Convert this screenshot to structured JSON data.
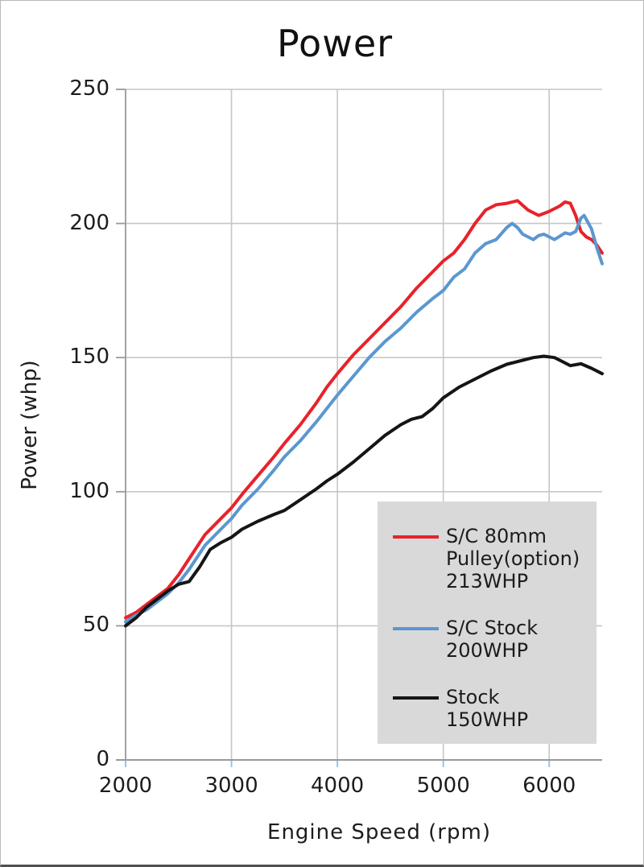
{
  "chart_data": {
    "type": "line",
    "title": "Power",
    "xlabel": "Engine Speed (rpm)",
    "ylabel": "Power (whp)",
    "xlim": [
      2000,
      6500
    ],
    "ylim": [
      0,
      250
    ],
    "x_ticks": [
      2000,
      3000,
      4000,
      5000,
      6000
    ],
    "y_ticks": [
      0,
      50,
      100,
      150,
      200,
      250
    ],
    "grid": true,
    "legend_position": "lower right",
    "colors": {
      "gridline": "#c6c6c6",
      "axis": "#999999",
      "x_tick_mark": "#9dc3e6",
      "legend_background": "#d9d9d9",
      "text": "#1c1c1c"
    },
    "series": [
      {
        "name": "S/C 80mm Pulley(option) 213WHP",
        "legend_text": "S/C 80mm\nPulley(option)\n213WHP",
        "color": "#e8222a",
        "peak_whp": 213,
        "points": [
          [
            2000,
            53
          ],
          [
            2100,
            55
          ],
          [
            2200,
            58
          ],
          [
            2300,
            61
          ],
          [
            2400,
            64
          ],
          [
            2500,
            69
          ],
          [
            2600,
            75
          ],
          [
            2750,
            84
          ],
          [
            2850,
            88
          ],
          [
            3000,
            94
          ],
          [
            3100,
            99
          ],
          [
            3250,
            106
          ],
          [
            3400,
            113
          ],
          [
            3500,
            118
          ],
          [
            3650,
            125
          ],
          [
            3800,
            133
          ],
          [
            3900,
            139
          ],
          [
            4000,
            144
          ],
          [
            4150,
            151
          ],
          [
            4300,
            157
          ],
          [
            4450,
            163
          ],
          [
            4600,
            169
          ],
          [
            4750,
            176
          ],
          [
            4900,
            182
          ],
          [
            5000,
            186
          ],
          [
            5100,
            189
          ],
          [
            5200,
            194
          ],
          [
            5300,
            200
          ],
          [
            5400,
            205
          ],
          [
            5500,
            207
          ],
          [
            5600,
            207.5
          ],
          [
            5700,
            208.5
          ],
          [
            5800,
            205
          ],
          [
            5900,
            203
          ],
          [
            6000,
            204.5
          ],
          [
            6100,
            206.5
          ],
          [
            6150,
            208
          ],
          [
            6200,
            207.5
          ],
          [
            6250,
            203
          ],
          [
            6300,
            197
          ],
          [
            6350,
            195
          ],
          [
            6400,
            194
          ],
          [
            6450,
            192
          ],
          [
            6500,
            189
          ]
        ]
      },
      {
        "name": "S/C Stock 200WHP",
        "legend_text": "S/C Stock\n200WHP",
        "color": "#5b97d0",
        "peak_whp": 200,
        "points": [
          [
            2000,
            51.5
          ],
          [
            2100,
            54
          ],
          [
            2200,
            56
          ],
          [
            2300,
            59
          ],
          [
            2400,
            62
          ],
          [
            2500,
            66
          ],
          [
            2600,
            71
          ],
          [
            2750,
            80
          ],
          [
            2900,
            86
          ],
          [
            3000,
            90
          ],
          [
            3100,
            95
          ],
          [
            3250,
            101
          ],
          [
            3400,
            108
          ],
          [
            3500,
            113
          ],
          [
            3650,
            119
          ],
          [
            3800,
            126
          ],
          [
            3900,
            131
          ],
          [
            4000,
            136
          ],
          [
            4150,
            143
          ],
          [
            4300,
            150
          ],
          [
            4450,
            156
          ],
          [
            4600,
            161
          ],
          [
            4750,
            167
          ],
          [
            4900,
            172
          ],
          [
            5000,
            175
          ],
          [
            5100,
            180
          ],
          [
            5200,
            183
          ],
          [
            5300,
            189
          ],
          [
            5400,
            192.5
          ],
          [
            5500,
            194
          ],
          [
            5600,
            198.5
          ],
          [
            5650,
            200
          ],
          [
            5700,
            198.5
          ],
          [
            5750,
            196
          ],
          [
            5850,
            194
          ],
          [
            5900,
            195.5
          ],
          [
            5950,
            196
          ],
          [
            6050,
            194
          ],
          [
            6150,
            196.5
          ],
          [
            6200,
            196
          ],
          [
            6250,
            197
          ],
          [
            6300,
            202
          ],
          [
            6330,
            203
          ],
          [
            6400,
            198
          ],
          [
            6450,
            191
          ],
          [
            6500,
            185
          ]
        ]
      },
      {
        "name": "Stock 150WHP",
        "legend_text": "Stock\n150WHP",
        "color": "#151515",
        "peak_whp": 150,
        "points": [
          [
            2000,
            50
          ],
          [
            2100,
            53
          ],
          [
            2200,
            57
          ],
          [
            2300,
            60
          ],
          [
            2400,
            63
          ],
          [
            2500,
            65.5
          ],
          [
            2600,
            66.5
          ],
          [
            2700,
            72
          ],
          [
            2800,
            78.5
          ],
          [
            2900,
            81
          ],
          [
            3000,
            83
          ],
          [
            3100,
            86
          ],
          [
            3250,
            89
          ],
          [
            3400,
            91.5
          ],
          [
            3500,
            93
          ],
          [
            3650,
            97
          ],
          [
            3800,
            101
          ],
          [
            3900,
            104
          ],
          [
            4000,
            106.5
          ],
          [
            4150,
            111
          ],
          [
            4300,
            116
          ],
          [
            4450,
            121
          ],
          [
            4600,
            125
          ],
          [
            4700,
            127
          ],
          [
            4800,
            128
          ],
          [
            4900,
            131
          ],
          [
            5000,
            135
          ],
          [
            5150,
            139
          ],
          [
            5300,
            142
          ],
          [
            5450,
            145
          ],
          [
            5600,
            147.5
          ],
          [
            5750,
            149
          ],
          [
            5850,
            150
          ],
          [
            5950,
            150.5
          ],
          [
            6050,
            150
          ],
          [
            6100,
            149
          ],
          [
            6200,
            147
          ],
          [
            6300,
            147.7
          ],
          [
            6400,
            146
          ],
          [
            6500,
            144
          ]
        ]
      }
    ]
  }
}
